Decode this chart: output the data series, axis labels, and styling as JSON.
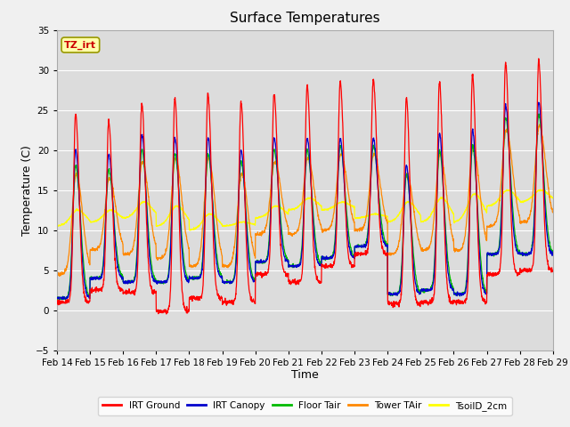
{
  "title": "Surface Temperatures",
  "xlabel": "Time",
  "ylabel": "Temperature (C)",
  "ylim": [
    -5,
    35
  ],
  "xlim": [
    0,
    15
  ],
  "x_tick_labels": [
    "Feb 14",
    "Feb 15",
    "Feb 16",
    "Feb 17",
    "Feb 18",
    "Feb 19",
    "Feb 20",
    "Feb 21",
    "Feb 22",
    "Feb 23",
    "Feb 24",
    "Feb 25",
    "Feb 26",
    "Feb 27",
    "Feb 28",
    "Feb 29"
  ],
  "annotation_text": "TZ_irt",
  "legend_entries": [
    "IRT Ground",
    "IRT Canopy",
    "Floor Tair",
    "Tower TAir",
    "TsoilD_2cm"
  ],
  "legend_colors": [
    "#ff0000",
    "#0000cc",
    "#00bb00",
    "#ff8800",
    "#ffff00"
  ],
  "line_colors": {
    "IRT Ground": "#ff0000",
    "IRT Canopy": "#0000cc",
    "Floor Tair": "#00bb00",
    "Tower TAir": "#ff8800",
    "TsoilD_2cm": "#ffff00"
  },
  "plot_bg": "#dcdcdc",
  "fig_bg": "#f0f0f0",
  "title_fontsize": 11,
  "axis_label_fontsize": 9,
  "tick_fontsize": 7.5,
  "num_days": 15,
  "points_per_day": 144
}
